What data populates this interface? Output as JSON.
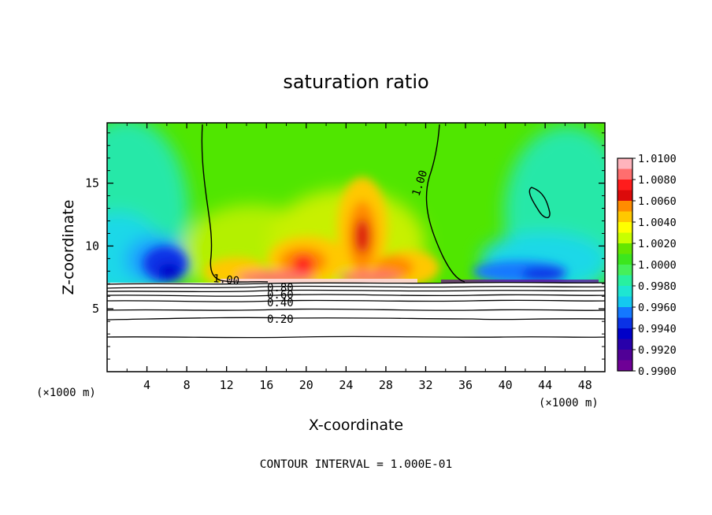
{
  "chart_data": {
    "type": "heatmap",
    "title": "saturation ratio",
    "xlabel": "X-coordinate",
    "ylabel": "Z-coordinate",
    "x_unit": "(×1000 m)",
    "y_unit": "(×1000 m)",
    "xlim": [
      0,
      50
    ],
    "ylim": [
      0,
      19.8
    ],
    "x_ticks": [
      "4",
      "8",
      "12",
      "16",
      "20",
      "24",
      "28",
      "32",
      "36",
      "40",
      "44",
      "48"
    ],
    "y_ticks": [
      "5",
      "10",
      "15"
    ],
    "colorbar": {
      "labels": [
        "1.0100",
        "1.0080",
        "1.0060",
        "1.0040",
        "1.0020",
        "1.0000",
        "0.9980",
        "0.9960",
        "0.9940",
        "0.9920",
        "0.9900"
      ],
      "colors": [
        "#ffb4bc",
        "#ff6e6e",
        "#ff1c1c",
        "#dc0a0a",
        "#ff8c00",
        "#ffc800",
        "#ffff00",
        "#c8ff00",
        "#64e600",
        "#3ce61e",
        "#46f05a",
        "#28f0a0",
        "#1ee6d2",
        "#14c8f0",
        "#1478ff",
        "#0a32e6",
        "#0000c8",
        "#2800aa",
        "#500096",
        "#6e0096"
      ]
    },
    "contours": [
      {
        "label": "1.00"
      },
      {
        "label": "1.00"
      },
      {
        "label": "0.80"
      },
      {
        "label": "0.60"
      },
      {
        "label": "0.40"
      },
      {
        "label": "0.20"
      }
    ],
    "footer": "CONTOUR INTERVAL = 1.000E-01"
  }
}
